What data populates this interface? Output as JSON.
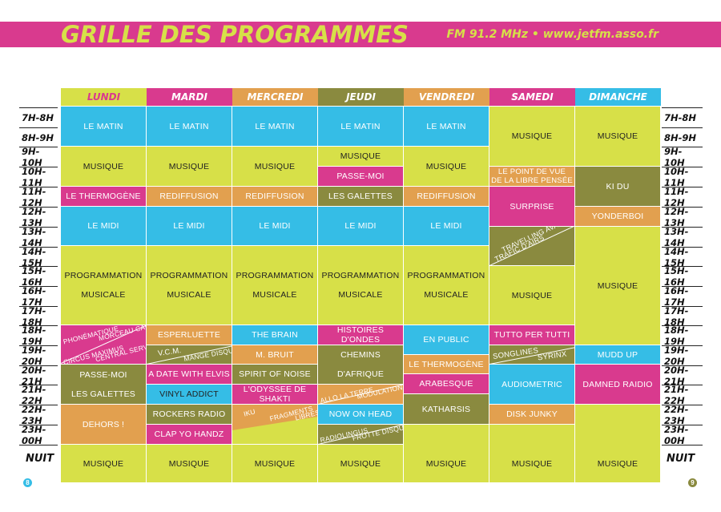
{
  "header": {
    "title": "GRILLE DES PROGRAMMES",
    "subtitle": "FM 91.2 MHz • www.jetfm.asso.fr"
  },
  "days": [
    "LUNDI",
    "MARDI",
    "MERCREDI",
    "JEUDI",
    "VENDREDI",
    "SAMEDI",
    "DIMANCHE"
  ],
  "hours": [
    "7H-8H",
    "8H-9H",
    "9H-10H",
    "10H-11H",
    "11H-12H",
    "12H-13H",
    "13H-14H",
    "14H-15H",
    "15H-16H",
    "16H-17H",
    "17H-18H",
    "18H-19H",
    "19H-20H",
    "20H-21H",
    "21H-22H",
    "22H-23H",
    "23H-00H"
  ],
  "night_label": "NUIT",
  "page_numbers": {
    "left": "8",
    "right": "9"
  },
  "colors": {
    "pink": "#d93a8e",
    "lime": "#d7e048",
    "cyan": "#35bde6",
    "olive": "#8a8a3f",
    "orange": "#e2a04f"
  },
  "programs": {
    "lundi": [
      "LE MATIN",
      "MUSIQUE",
      "LE THERMOGÈNE",
      "LE MIDI",
      "PROGRAMMATION",
      "MUSICALE",
      "PHONÉMATIQUE",
      "MORCEAU CACHÉ",
      "CIRCUS MAXIMUS",
      "CENTRAL SERVICES",
      "PASSE-MOI",
      "LES GALETTES",
      "DEHORS !",
      "MUSIQUE"
    ],
    "mardi": [
      "LE MATIN",
      "MUSIQUE",
      "REDIFFUSION",
      "LE MIDI",
      "PROGRAMMATION",
      "MUSICALE",
      "ESPERLUETTE",
      "V.C.M.",
      "MANGE DISQUE",
      "A DATE WITH ELVIS",
      "VINYL ADDICT",
      "ROCKERS RADIO",
      "CLAP YO HANDZ",
      "MUSIQUE"
    ],
    "mercredi": [
      "LE MATIN",
      "MUSIQUE",
      "REDIFFUSION",
      "LE MIDI",
      "PROGRAMMATION",
      "MUSICALE",
      "THE BRAIN",
      "M. BRUIT",
      "SPIRIT OF NOISE",
      "L'ODYSSEE DE SHAKTI",
      "IKU",
      "FRAGMENTS",
      "LIBRES",
      "MUSIQUE"
    ],
    "jeudi": [
      "LE MATIN",
      "MUSIQUE",
      "PASSE-MOI",
      "LES GALETTES",
      "LE MIDI",
      "PROGRAMMATION",
      "MUSICALE",
      "HISTOIRES D'ONDES",
      "CHEMINS",
      "D'AFRIQUE",
      "ALLO LA TERRE",
      "MODULATION",
      "NOW ON HEAD",
      "RADIOLINGUS",
      "FROTTE DISQUES",
      "MUSIQUE"
    ],
    "vendredi": [
      "LE MATIN",
      "MUSIQUE",
      "REDIFFUSION",
      "LE MIDI",
      "PROGRAMMATION",
      "MUSICALE",
      "EN PUBLIC",
      "LE THERMOGÈNE",
      "ARABESQUE",
      "KATHARSIS",
      "MUSIQUE"
    ],
    "samedi": [
      "MUSIQUE",
      "LE POINT DE VUE",
      "DE LA LIBRE PENSÉE",
      "SURPRISE",
      "TRAFIC D'AIRS",
      "TRAVELLING AVANT",
      "MUSIQUE",
      "TUTTO PER TUTTI",
      "SONGLINES",
      "SYRINX",
      "AUDIOMETRIC",
      "DISK JUNKY",
      "MUSIQUE"
    ],
    "dimanche": [
      "MUSIQUE",
      "KI DU",
      "YONDERBOI",
      "MUSIQUE",
      "MUDD UP",
      "DAMNED RAIDIO",
      "MUSIQUE"
    ]
  }
}
